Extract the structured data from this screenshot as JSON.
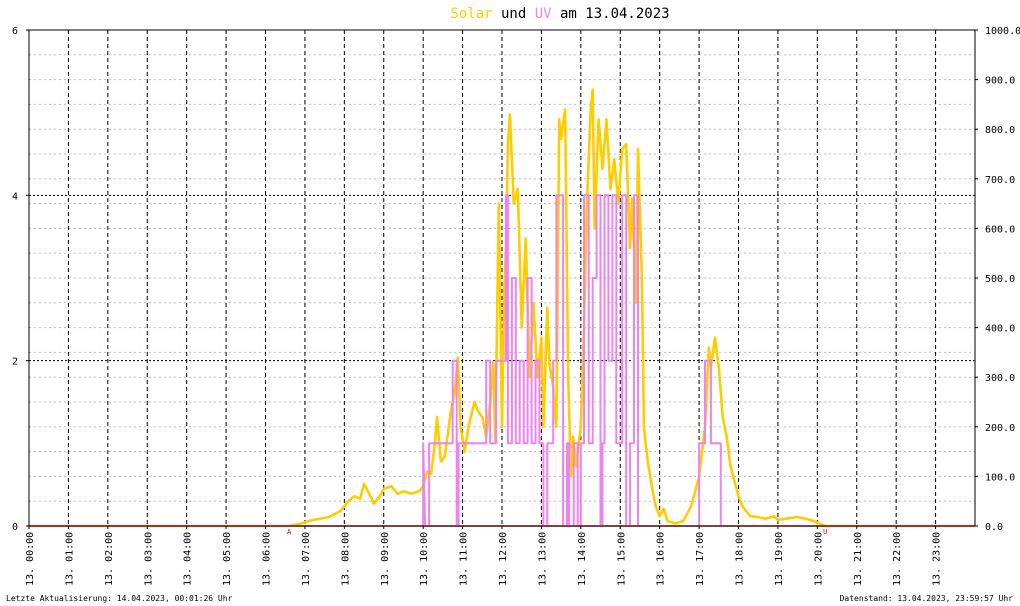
{
  "title": {
    "part1": "Solar",
    "part2": " und ",
    "part3": "UV",
    "part4": " am 13.04.2023",
    "color_solar": "#ffcc00",
    "color_uv": "#ee82ee",
    "color_text": "#000000"
  },
  "footer": {
    "left": "Letzte Aktualisierung: 14.04.2023, 00:01:26 Uhr",
    "right": "Datenstand: 13.04.2023, 23:59:57 Uhr"
  },
  "markers": {
    "sunrise": "A",
    "sunset": "U"
  },
  "chart_data": {
    "type": "line",
    "x_tick_labels": [
      "13. 00:00",
      "13. 01:00",
      "13. 02:00",
      "13. 03:00",
      "13. 04:00",
      "13. 05:00",
      "13. 06:00",
      "13. 07:00",
      "13. 08:00",
      "13. 09:00",
      "13. 10:00",
      "13. 11:00",
      "13. 12:00",
      "13. 13:00",
      "13. 14:00",
      "13. 15:00",
      "13. 16:00",
      "13. 17:00",
      "13. 18:00",
      "13. 19:00",
      "13. 20:00",
      "13. 21:00",
      "13. 22:00",
      "13. 23:00"
    ],
    "xlim": [
      0,
      24
    ],
    "left_axis": {
      "ylim": [
        0,
        6
      ],
      "ticks": [
        "0",
        "2",
        "4",
        "6"
      ]
    },
    "right_axis": {
      "ylim": [
        0,
        1000
      ],
      "ticks": [
        "0.0",
        "100.0",
        "200.0",
        "300.0",
        "400.0",
        "500.0",
        "600.0",
        "700.0",
        "800.0",
        "900.0",
        "1000.0"
      ]
    },
    "grid": true,
    "markers_x": {
      "sunrise": 6.6,
      "sunset": 20.2
    },
    "series": [
      {
        "key": "solar",
        "axis": "right",
        "color": "#ffcc00",
        "points": [
          [
            0,
            0
          ],
          [
            6.6,
            0
          ],
          [
            6.9,
            5
          ],
          [
            7.2,
            12
          ],
          [
            7.6,
            18
          ],
          [
            7.9,
            30
          ],
          [
            8.1,
            50
          ],
          [
            8.25,
            60
          ],
          [
            8.4,
            55
          ],
          [
            8.5,
            85
          ],
          [
            8.6,
            70
          ],
          [
            8.75,
            45
          ],
          [
            8.9,
            60
          ],
          [
            9,
            75
          ],
          [
            9.2,
            80
          ],
          [
            9.35,
            65
          ],
          [
            9.5,
            70
          ],
          [
            9.7,
            65
          ],
          [
            9.9,
            70
          ],
          [
            10,
            80
          ],
          [
            10.1,
            110
          ],
          [
            10.2,
            105
          ],
          [
            10.3,
            170
          ],
          [
            10.35,
            220
          ],
          [
            10.45,
            130
          ],
          [
            10.55,
            140
          ],
          [
            10.7,
            230
          ],
          [
            10.8,
            270
          ],
          [
            10.88,
            340
          ],
          [
            10.95,
            200
          ],
          [
            11.05,
            150
          ],
          [
            11.15,
            200
          ],
          [
            11.3,
            250
          ],
          [
            11.4,
            230
          ],
          [
            11.5,
            220
          ],
          [
            11.6,
            180
          ],
          [
            11.7,
            250
          ],
          [
            11.78,
            330
          ],
          [
            11.83,
            170
          ],
          [
            11.92,
            650
          ],
          [
            12,
            200
          ],
          [
            12.05,
            460
          ],
          [
            12.1,
            560
          ],
          [
            12.15,
            770
          ],
          [
            12.2,
            830
          ],
          [
            12.3,
            650
          ],
          [
            12.4,
            680
          ],
          [
            12.5,
            400
          ],
          [
            12.6,
            580
          ],
          [
            12.7,
            300
          ],
          [
            12.8,
            450
          ],
          [
            12.9,
            300
          ],
          [
            13,
            380
          ],
          [
            13.05,
            200
          ],
          [
            13.15,
            440
          ],
          [
            13.2,
            330
          ],
          [
            13.3,
            280
          ],
          [
            13.38,
            200
          ],
          [
            13.45,
            820
          ],
          [
            13.5,
            780
          ],
          [
            13.6,
            840
          ],
          [
            13.68,
            300
          ],
          [
            13.75,
            100
          ],
          [
            13.8,
            180
          ],
          [
            13.88,
            120
          ],
          [
            13.92,
            150
          ],
          [
            14,
            200
          ],
          [
            14.08,
            400
          ],
          [
            14.15,
            640
          ],
          [
            14.25,
            840
          ],
          [
            14.3,
            880
          ],
          [
            14.35,
            600
          ],
          [
            14.45,
            820
          ],
          [
            14.55,
            720
          ],
          [
            14.65,
            820
          ],
          [
            14.75,
            680
          ],
          [
            14.85,
            740
          ],
          [
            14.95,
            650
          ],
          [
            15.05,
            760
          ],
          [
            15.15,
            770
          ],
          [
            15.25,
            560
          ],
          [
            15.3,
            660
          ],
          [
            15.4,
            450
          ],
          [
            15.45,
            760
          ],
          [
            15.55,
            500
          ],
          [
            15.6,
            200
          ],
          [
            15.7,
            130
          ],
          [
            15.8,
            80
          ],
          [
            15.9,
            40
          ],
          [
            16,
            20
          ],
          [
            16.1,
            35
          ],
          [
            16.2,
            10
          ],
          [
            16.4,
            5
          ],
          [
            16.6,
            10
          ],
          [
            16.8,
            40
          ],
          [
            17,
            100
          ],
          [
            17.15,
            200
          ],
          [
            17.25,
            360
          ],
          [
            17.3,
            320
          ],
          [
            17.4,
            380
          ],
          [
            17.5,
            320
          ],
          [
            17.6,
            220
          ],
          [
            17.7,
            180
          ],
          [
            17.8,
            120
          ],
          [
            17.9,
            90
          ],
          [
            18,
            60
          ],
          [
            18.1,
            40
          ],
          [
            18.3,
            20
          ],
          [
            18.5,
            18
          ],
          [
            18.7,
            15
          ],
          [
            18.9,
            20
          ],
          [
            19,
            12
          ],
          [
            19.2,
            15
          ],
          [
            19.5,
            18
          ],
          [
            19.7,
            15
          ],
          [
            19.9,
            10
          ],
          [
            20.05,
            5
          ],
          [
            20.2,
            0
          ],
          [
            24,
            0
          ]
        ]
      },
      {
        "key": "uv",
        "axis": "left",
        "color": "#ee82ee",
        "points": [
          [
            0,
            0
          ],
          [
            10.0,
            0
          ],
          [
            10.0,
            1
          ],
          [
            10.05,
            0
          ],
          [
            10.15,
            0
          ],
          [
            10.15,
            1
          ],
          [
            10.75,
            1
          ],
          [
            10.75,
            2
          ],
          [
            10.85,
            2
          ],
          [
            10.85,
            0
          ],
          [
            10.9,
            0
          ],
          [
            10.9,
            1
          ],
          [
            11.6,
            1
          ],
          [
            11.6,
            2
          ],
          [
            11.7,
            2
          ],
          [
            11.7,
            1
          ],
          [
            11.85,
            1
          ],
          [
            11.85,
            2
          ],
          [
            12.1,
            2
          ],
          [
            12.1,
            4
          ],
          [
            12.15,
            4
          ],
          [
            12.15,
            1
          ],
          [
            12.25,
            1
          ],
          [
            12.25,
            3
          ],
          [
            12.35,
            3
          ],
          [
            12.35,
            1
          ],
          [
            12.45,
            1
          ],
          [
            12.45,
            2
          ],
          [
            12.55,
            2
          ],
          [
            12.55,
            1
          ],
          [
            12.65,
            1
          ],
          [
            12.65,
            3
          ],
          [
            12.75,
            3
          ],
          [
            12.75,
            1
          ],
          [
            12.85,
            1
          ],
          [
            12.85,
            2
          ],
          [
            12.95,
            2
          ],
          [
            12.95,
            1
          ],
          [
            13.05,
            1
          ],
          [
            13.05,
            0
          ],
          [
            13.15,
            0
          ],
          [
            13.15,
            1
          ],
          [
            13.3,
            1
          ],
          [
            13.3,
            2
          ],
          [
            13.38,
            2
          ],
          [
            13.38,
            4
          ],
          [
            13.55,
            4
          ],
          [
            13.55,
            0
          ],
          [
            13.65,
            0
          ],
          [
            13.65,
            1
          ],
          [
            13.7,
            1
          ],
          [
            13.7,
            0
          ],
          [
            13.82,
            0
          ],
          [
            13.82,
            1
          ],
          [
            13.92,
            1
          ],
          [
            13.92,
            0
          ],
          [
            14.0,
            0
          ],
          [
            14.0,
            1
          ],
          [
            14.08,
            1
          ],
          [
            14.08,
            4
          ],
          [
            14.2,
            4
          ],
          [
            14.2,
            1
          ],
          [
            14.3,
            1
          ],
          [
            14.3,
            3
          ],
          [
            14.4,
            3
          ],
          [
            14.4,
            4
          ],
          [
            14.5,
            4
          ],
          [
            14.5,
            0
          ],
          [
            14.55,
            0
          ],
          [
            14.55,
            1
          ],
          [
            14.6,
            1
          ],
          [
            14.6,
            4
          ],
          [
            14.7,
            4
          ],
          [
            14.7,
            2
          ],
          [
            14.8,
            2
          ],
          [
            14.8,
            4
          ],
          [
            14.9,
            4
          ],
          [
            14.9,
            1
          ],
          [
            15.05,
            1
          ],
          [
            15.05,
            4
          ],
          [
            15.15,
            4
          ],
          [
            15.15,
            0
          ],
          [
            15.25,
            0
          ],
          [
            15.25,
            1
          ],
          [
            15.35,
            1
          ],
          [
            15.35,
            4
          ],
          [
            15.45,
            4
          ],
          [
            15.45,
            0
          ],
          [
            17.0,
            0
          ],
          [
            17.0,
            1
          ],
          [
            17.15,
            1
          ],
          [
            17.15,
            2
          ],
          [
            17.3,
            2
          ],
          [
            17.3,
            1
          ],
          [
            17.55,
            1
          ],
          [
            17.55,
            0
          ],
          [
            24,
            0
          ]
        ]
      },
      {
        "key": "baseline",
        "axis": "left",
        "color": "#ff7f7f",
        "points": [
          [
            0,
            0
          ],
          [
            24,
            0
          ]
        ]
      }
    ]
  }
}
